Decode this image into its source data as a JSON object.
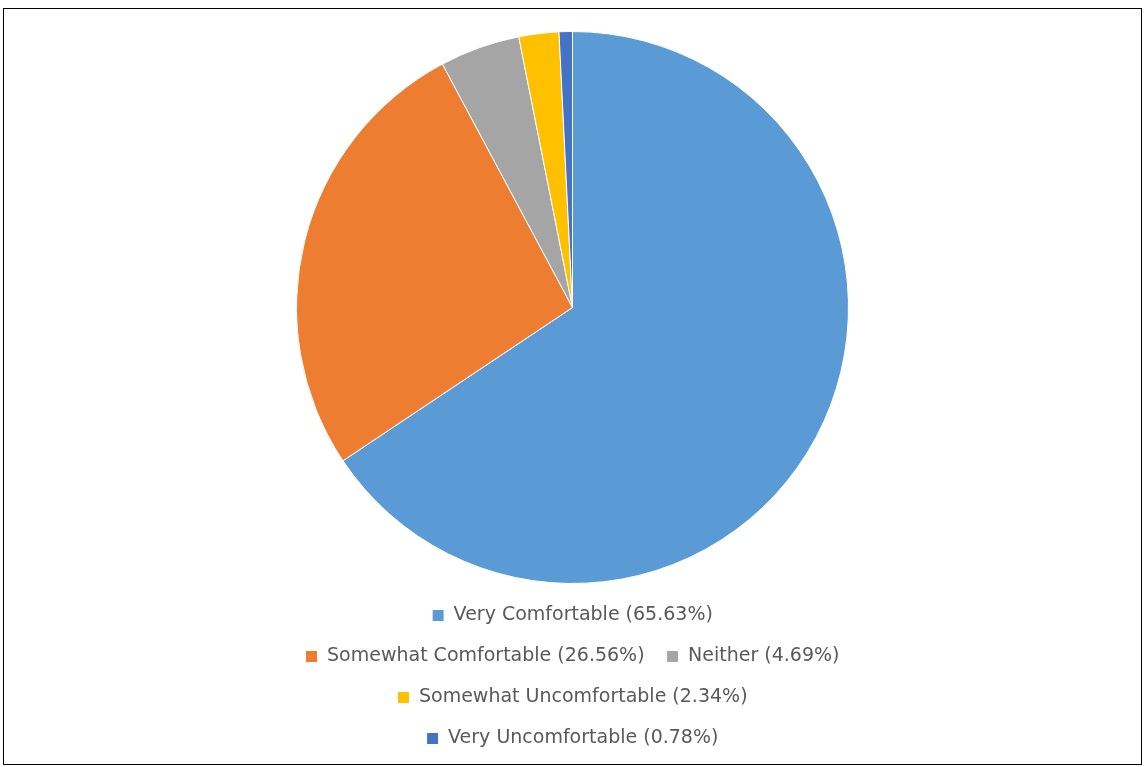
{
  "chart_data": {
    "type": "pie",
    "categories": [
      "Very Comfortable (65.63%)",
      "Somewhat Comfortable (26.56%)",
      "Neither (4.69%)",
      "Somewhat Uncomfortable (2.34%)",
      "Very Uncomfortable (0.78%)"
    ],
    "values": [
      65.63,
      26.56,
      4.69,
      2.34,
      0.78
    ],
    "colors": [
      "#5b9bd5",
      "#ed7d31",
      "#a5a5a5",
      "#ffc000",
      "#4472c4"
    ],
    "legend": "bottom"
  }
}
